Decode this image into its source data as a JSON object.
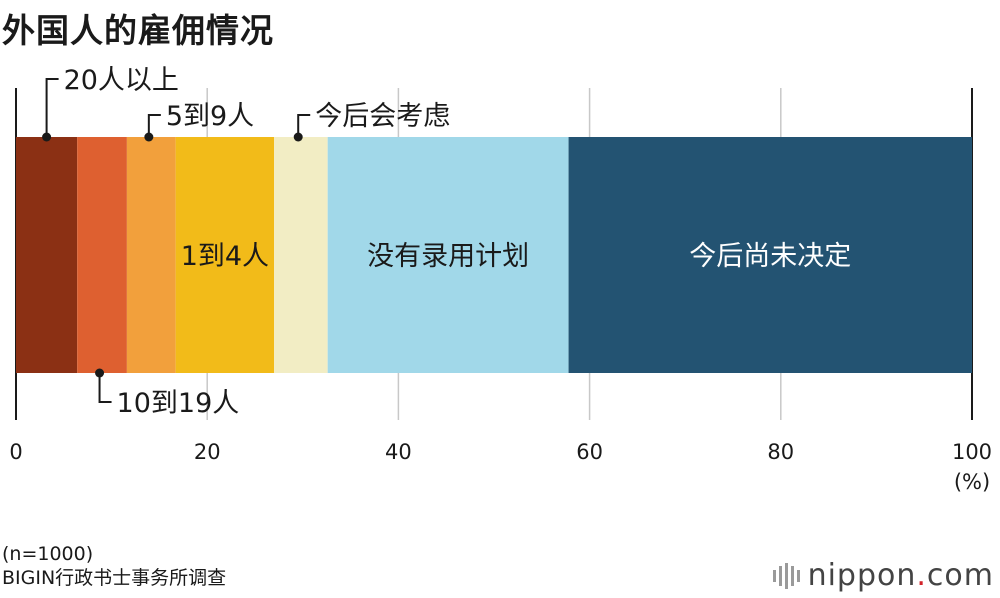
{
  "title": "外国人的雇佣情况",
  "notes": {
    "sample": "(n=1000)",
    "source": "BIGIN行政书士事务所调查"
  },
  "brand": {
    "prefix": "nippon",
    "dot": ".",
    "suffix": "com"
  },
  "chart_data": {
    "type": "bar",
    "orientation": "horizontal-stacked",
    "unit": "(%)",
    "xlim": [
      0,
      100
    ],
    "xticks": [
      "0",
      "20",
      "40",
      "60",
      "80",
      "100"
    ],
    "grid": true,
    "series": [
      {
        "name": "20人以上",
        "value": 6.4,
        "color": "#8b3014",
        "label_style": "callout-top"
      },
      {
        "name": "10到19人",
        "value": 5.2,
        "color": "#de6030",
        "label_style": "callout-bottom"
      },
      {
        "name": "5到9人",
        "value": 5.1,
        "color": "#f2a03c",
        "label_style": "callout-top"
      },
      {
        "name": "1到4人",
        "value": 10.3,
        "color": "#f2bb19",
        "label_style": "inside"
      },
      {
        "name": "今后会考虑",
        "value": 5.6,
        "color": "#f2edc4",
        "label_style": "callout-top"
      },
      {
        "name": "没有录用计划",
        "value": 25.2,
        "color": "#a1d8e9",
        "label_style": "inside"
      },
      {
        "name": "今后尚未决定",
        "value": 42.2,
        "color": "#235372",
        "label_style": "inside-light"
      }
    ]
  }
}
